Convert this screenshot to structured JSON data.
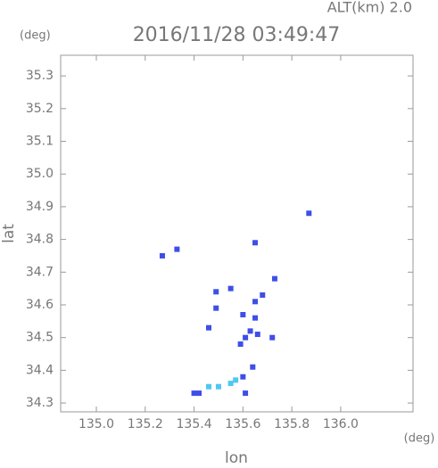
{
  "chart_data": {
    "type": "scatter",
    "title": "2016/11/28 03:49:47",
    "subtitle": "ALT(km) 2.0",
    "y_unit": "(deg)",
    "x_unit": "(deg)",
    "xlabel": "lon",
    "ylabel": "lat",
    "xlim": [
      134.854,
      136.296
    ],
    "ylim": [
      34.273,
      35.363
    ],
    "xticks": [
      {
        "value": 135.0,
        "label": "135.0"
      },
      135.2,
      135.4,
      135.6,
      135.8,
      {
        "value": 136.0,
        "label": "136.0"
      }
    ],
    "yticks": [
      34.3,
      34.4,
      34.5,
      34.6,
      34.7,
      34.8,
      34.9,
      {
        "value": 35.0,
        "label": "35.0"
      },
      35.1,
      35.2,
      35.3
    ],
    "series": [
      {
        "color": "#3f4ee8",
        "x": [
          135.87,
          135.27,
          135.33,
          135.65,
          135.73,
          135.68,
          135.65,
          135.6,
          135.65,
          135.63,
          135.61,
          135.59,
          135.66,
          135.72,
          135.55,
          135.49,
          135.49,
          135.46,
          135.64,
          135.6,
          135.61,
          135.4,
          135.42
        ],
        "values": [
          34.88,
          34.75,
          34.77,
          34.79,
          34.68,
          34.63,
          34.61,
          34.57,
          34.56,
          34.52,
          34.5,
          34.48,
          34.51,
          34.5,
          34.65,
          34.64,
          34.59,
          34.53,
          34.41,
          34.38,
          34.33,
          34.33,
          34.33
        ]
      },
      {
        "color": "#4fc8f0",
        "x": [
          135.46,
          135.5,
          135.55,
          135.57
        ],
        "values": [
          34.35,
          34.35,
          34.36,
          34.37
        ]
      }
    ]
  }
}
